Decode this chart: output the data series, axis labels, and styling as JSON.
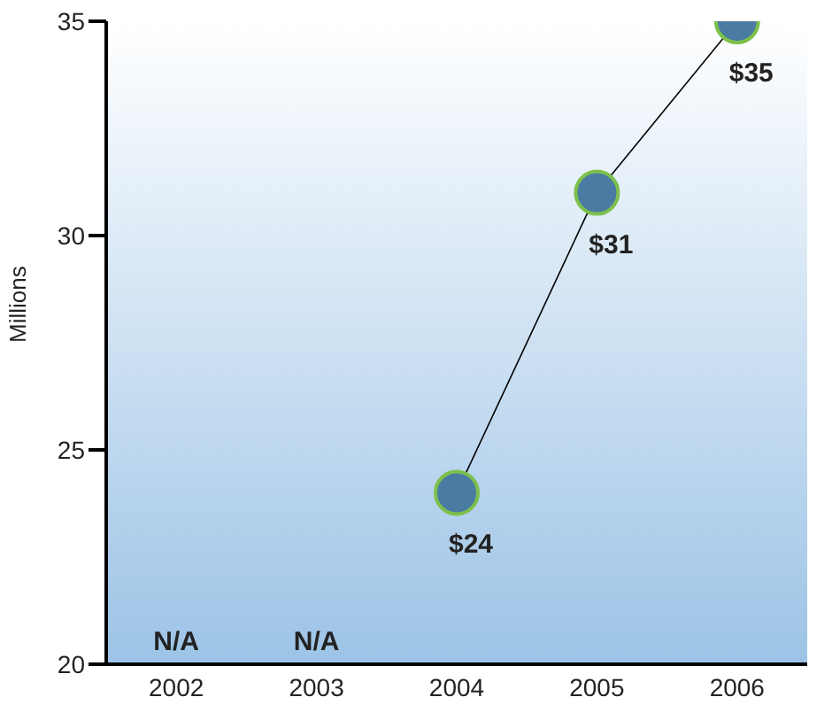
{
  "chart_data": {
    "type": "line",
    "ylabel": "Millions",
    "categories": [
      "2002",
      "2003",
      "2004",
      "2005",
      "2006"
    ],
    "series": [
      {
        "color": "#4a7ba3",
        "values": [
          null,
          null,
          24,
          31,
          35
        ],
        "value_labels": [
          "N/A",
          "N/A",
          "$24",
          "$31",
          "$35"
        ]
      }
    ],
    "ylim": [
      20,
      35
    ],
    "yticks": [
      20,
      25,
      30,
      35
    ],
    "grid": false,
    "marker": "circle",
    "line_style": "solid"
  }
}
